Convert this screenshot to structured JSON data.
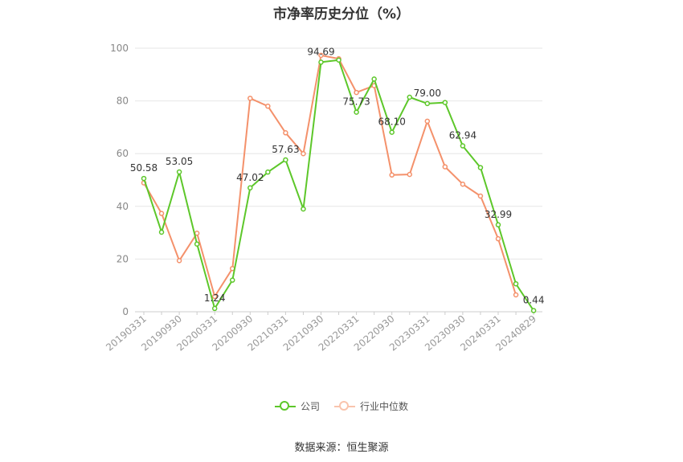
{
  "chart_data": {
    "type": "line",
    "title": "市净率历史分位（%）",
    "x": [
      "20190331",
      "20190630",
      "20190930",
      "20191231",
      "20200331",
      "20200630",
      "20200930",
      "20201231",
      "20210331",
      "20210630",
      "20210930",
      "20211231",
      "20220331",
      "20220630",
      "20220930",
      "20221231",
      "20230331",
      "20230630",
      "20230930",
      "20231231",
      "20240331",
      "20240630",
      "20240829"
    ],
    "x_tick_labels": [
      "20190331",
      "20190930",
      "20200331",
      "20200930",
      "20210331",
      "20210930",
      "20220331",
      "20220930",
      "20230331",
      "20230930",
      "20240331",
      "20240829"
    ],
    "ylim": [
      0,
      100
    ],
    "y_ticks": [
      0,
      20,
      40,
      60,
      80,
      100
    ],
    "grid": true,
    "legend_position": "bottom",
    "series": [
      {
        "name": "公司",
        "color": "#5dc72a",
        "values": [
          50.58,
          30.2,
          53.05,
          25.7,
          1.24,
          12.0,
          47.02,
          53.0,
          57.63,
          39.0,
          94.69,
          95.5,
          75.73,
          88.3,
          68.1,
          81.4,
          79.0,
          79.4,
          62.94,
          54.7,
          32.99,
          10.6,
          0.44
        ],
        "labels": [
          "50.58",
          "",
          "53.05",
          "",
          "1.24",
          "",
          "47.02",
          "",
          "57.63",
          "",
          "94.69",
          "",
          "75.73",
          "",
          "68.10",
          "",
          "79.00",
          "",
          "62.94",
          "",
          "32.99",
          "",
          "0.44"
        ]
      },
      {
        "name": "行业中位数",
        "color": "#f4916b",
        "values": [
          48.9,
          37.3,
          19.4,
          29.8,
          5.8,
          16.4,
          81.0,
          78.0,
          67.9,
          60.0,
          97.3,
          96.0,
          83.2,
          85.8,
          51.9,
          52.1,
          72.3,
          55.0,
          48.4,
          43.9,
          27.7,
          6.4,
          null
        ]
      }
    ]
  },
  "legend": {
    "company_label": "公司",
    "industry_label": "行业中位数"
  },
  "source_text": "数据来源：恒生聚源"
}
